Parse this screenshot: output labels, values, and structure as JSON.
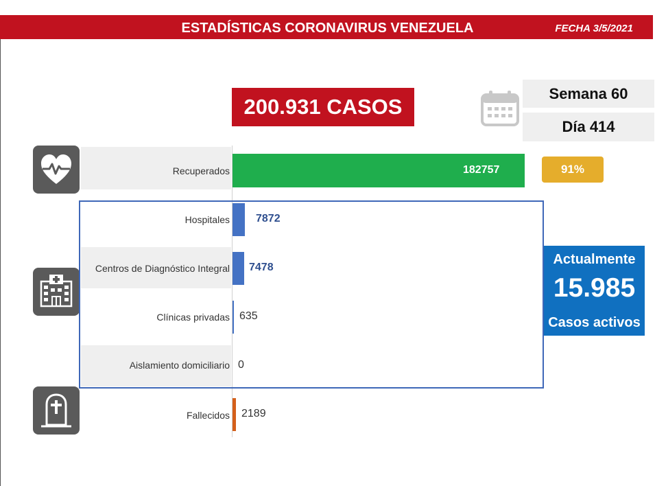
{
  "header": {
    "title": "ESTADÍSTICAS CORONAVIRUS VENEZUELA",
    "date": "FECHA 3/5/2021"
  },
  "total_cases": "200.931 CASOS",
  "week": "Semana 60",
  "day": "Día 414",
  "recovered_percent": "91%",
  "active": {
    "title": "Actualmente",
    "value": "15.985",
    "subtitle": "Casos activos"
  },
  "chart_data": {
    "type": "bar",
    "orientation": "horizontal",
    "categories": [
      "Recuperados",
      "Hospitales",
      "Centros de Diagnóstico Integral",
      "Clínicas privadas",
      "Aislamiento domiciliario",
      "Fallecidos"
    ],
    "values": [
      182757,
      7872,
      7478,
      635,
      0,
      2189
    ],
    "value_labels": [
      "182757",
      "7872",
      "7478",
      "635",
      "0",
      "2189"
    ],
    "colors": [
      "#1fae4d",
      "#4472c4",
      "#4472c4",
      "#4472c4",
      "#4472c4",
      "#d4601b"
    ]
  },
  "icons": {
    "calendar": "calendar-icon",
    "recovered": "heart-pulse-icon",
    "hospital": "hospital-icon",
    "deceased": "tombstone-icon"
  }
}
